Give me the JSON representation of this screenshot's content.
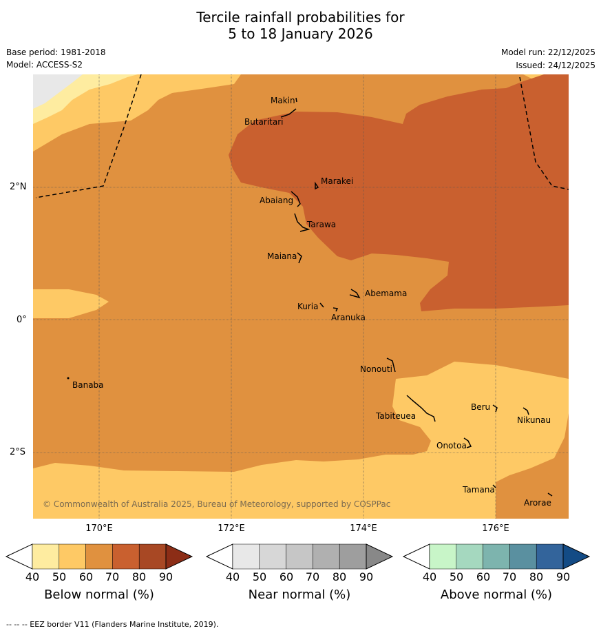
{
  "title": {
    "line1": "Tercile rainfall probabilities for",
    "line2": "5 to 18 January 2026"
  },
  "meta": {
    "base_period": "Base period: 1981-2018",
    "model": "Model: ACCESS-S2",
    "model_run": "Model run: 22/12/2025",
    "issued": "Issued: 24/12/2025"
  },
  "map": {
    "lat_labels": [
      "2°N",
      "0°",
      "2°S"
    ],
    "lon_labels": [
      "170°E",
      "172°E",
      "174°E",
      "176°E"
    ],
    "copyright": "© Commonwealth of Australia 2025, Bureau of Meteorology, supported by COSPPac",
    "places": [
      "Makin",
      "Butaritari",
      "Marakei",
      "Abaiang",
      "Tarawa",
      "Maiana",
      "Abemama",
      "Kuria",
      "Aranuka",
      "Nonouti",
      "Banaba",
      "Tabiteuea",
      "Beru",
      "Nikunau",
      "Onotoa",
      "Tamana",
      "Arorae"
    ]
  },
  "colorbars": [
    {
      "title": "Below normal (%)",
      "ticks": [
        "40",
        "50",
        "60",
        "70",
        "80",
        "90"
      ],
      "colors": [
        "#ffffff",
        "#feeca0",
        "#fec965",
        "#e0913f",
        "#c9602f",
        "#a84824",
        "#8c2d16"
      ]
    },
    {
      "title": "Near normal (%)",
      "ticks": [
        "40",
        "50",
        "60",
        "70",
        "80",
        "90"
      ],
      "colors": [
        "#ffffff",
        "#e8e8e8",
        "#d7d7d7",
        "#c6c6c6",
        "#b0b0b0",
        "#9e9e9e",
        "#888888"
      ]
    },
    {
      "title": "Above normal (%)",
      "ticks": [
        "40",
        "50",
        "60",
        "70",
        "80",
        "90"
      ],
      "colors": [
        "#ffffff",
        "#c8f5c8",
        "#a5d8bf",
        "#7db4ae",
        "#5a90a0",
        "#33649b",
        "#134b85"
      ]
    }
  ],
  "footnote": "--  --  -- EEZ border V11 (Flanders Marine Institute, 2019).",
  "colors": {
    "band_50_60": "#fec965",
    "band_60_70": "#e0913f",
    "band_70_80": "#c9602f",
    "band_40_50": "#feeca0",
    "near_normal_light": "#e8e8e8"
  }
}
